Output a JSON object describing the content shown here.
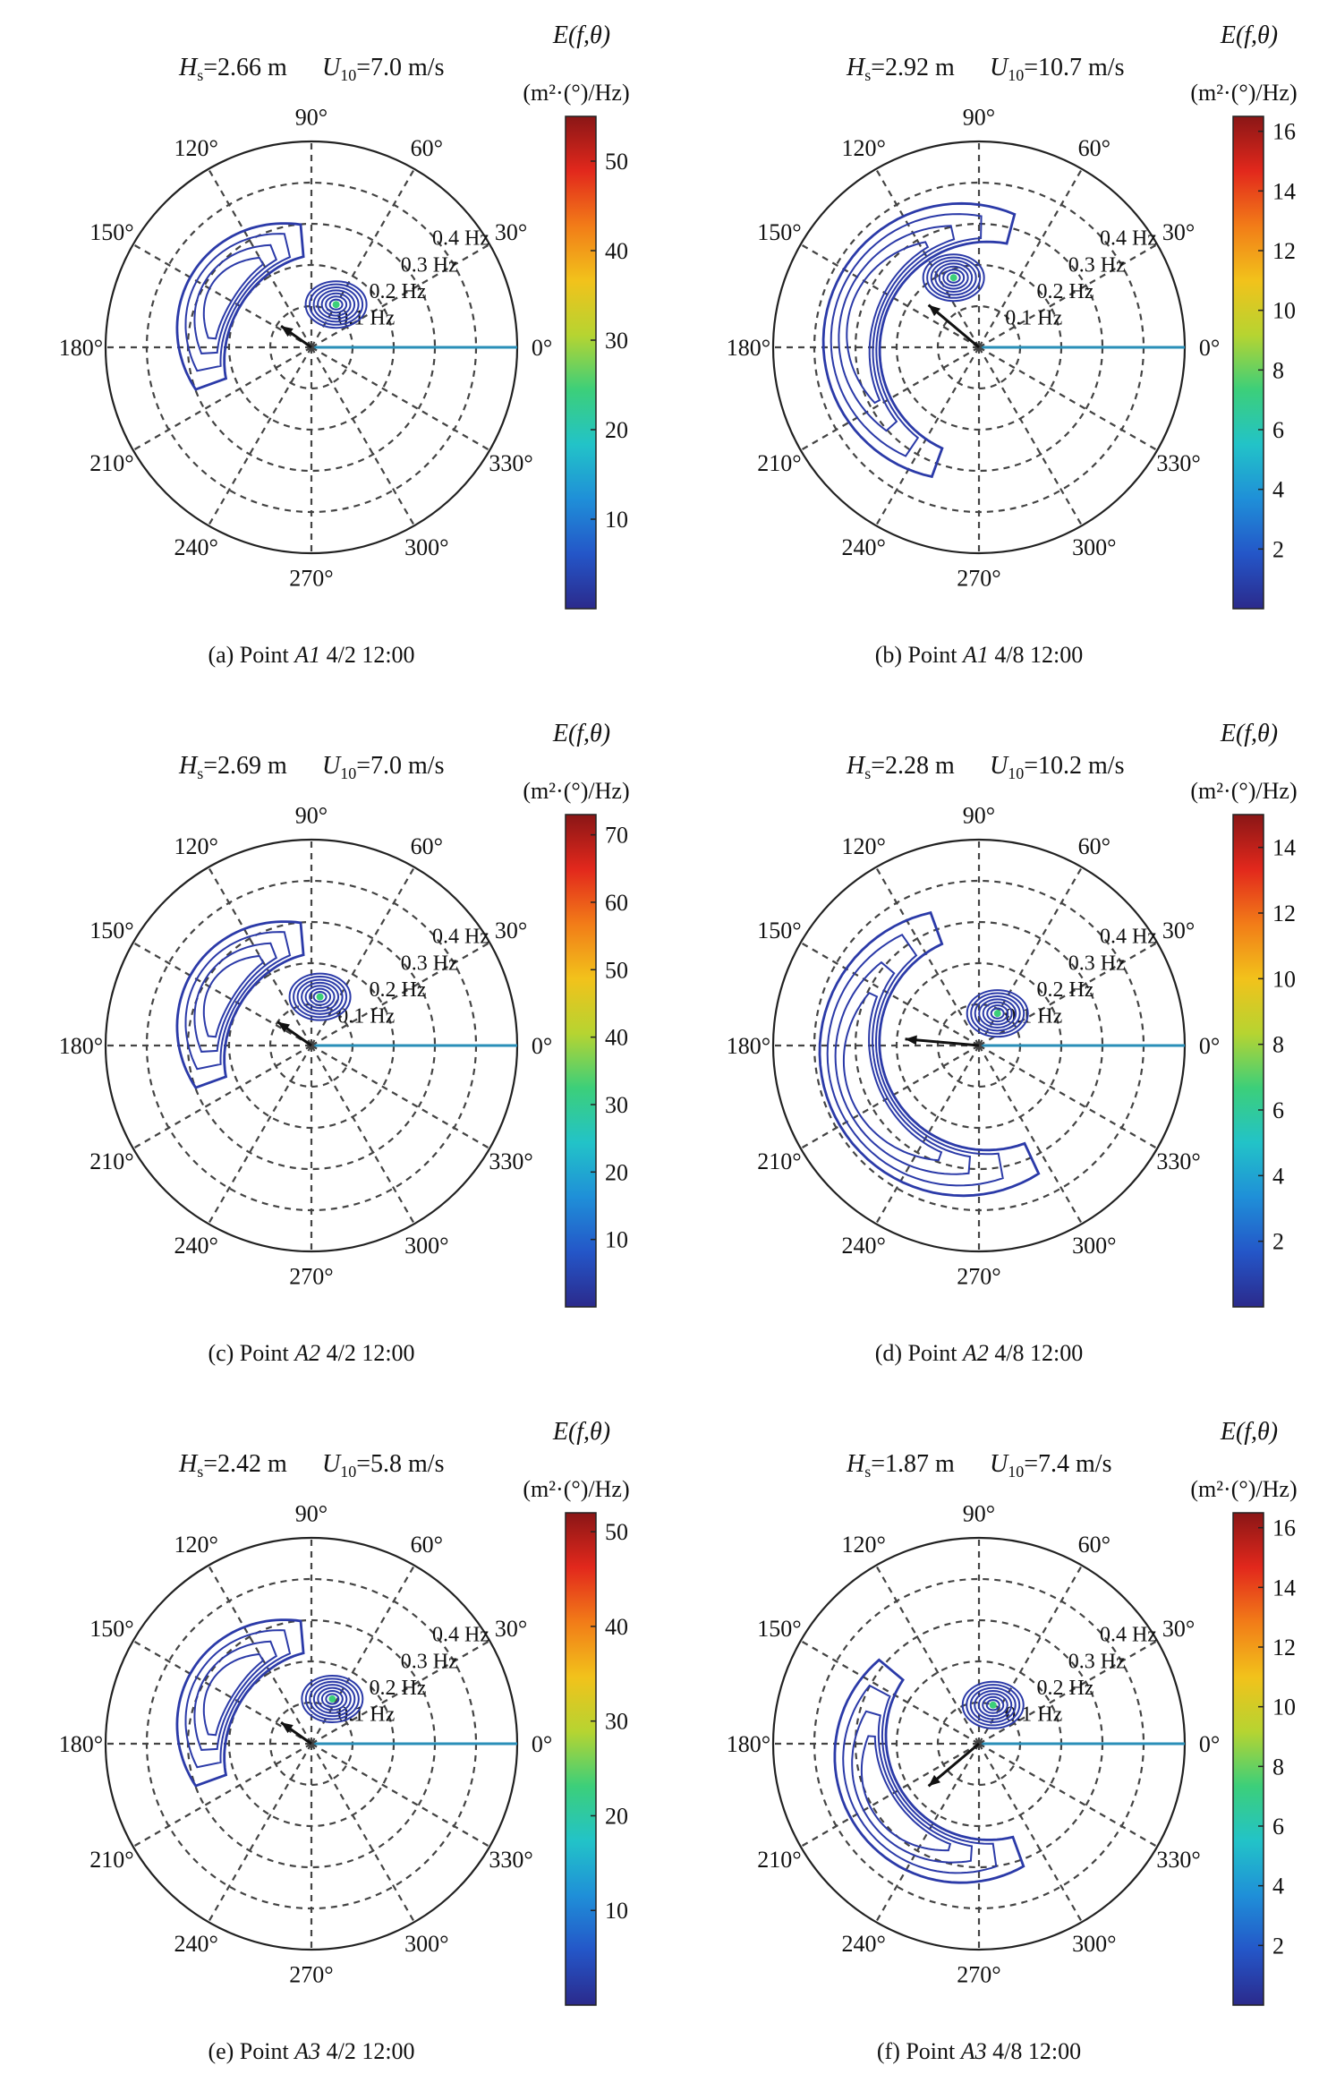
{
  "figure": {
    "colors": {
      "grid": "#444444",
      "contour": "#2b3aa8",
      "wind_arrow": "#111111",
      "zero_line": "#2a8fb8",
      "text": "#111111"
    },
    "colormap": [
      "#2b2a8c",
      "#2456c8",
      "#1f8fd8",
      "#22c3c8",
      "#3ccf7a",
      "#b6d431",
      "#f2c21b",
      "#f27c18",
      "#e2281c",
      "#8a1616"
    ],
    "colorbar_title": "E(f,θ)",
    "colorbar_unit": "(m²·(°)/Hz)",
    "angle_labels": [
      "0°",
      "30°",
      "60°",
      "90°",
      "120°",
      "150°",
      "180°",
      "210°",
      "240°",
      "270°",
      "300°",
      "330°"
    ],
    "freq_labels": [
      "0.1 Hz",
      "0.2 Hz",
      "0.3 Hz",
      "0.4 Hz"
    ],
    "hs_label": "H",
    "hs_sub": "s",
    "u_label": "U",
    "u_sub": "10"
  },
  "chart_data": [
    {
      "type": "polar-contour",
      "caption_prefix": "(a) Point ",
      "point": "A1",
      "caption_suffix": " 4/2 12:00",
      "hs_value": "=2.66 m",
      "u10_value": "=7.0 m/s",
      "colorbar_ticks": [
        "10",
        "20",
        "30",
        "40",
        "50"
      ],
      "colorbar_max": 55,
      "colorbar_min": 0,
      "wind_direction_deg": 145,
      "wind_freq": 0.09,
      "peak_direction_deg": 60,
      "peak_freq": 0.12,
      "swell": {
        "dir_start": 95,
        "dir_end": 200,
        "f_outer": 0.34,
        "f_inner": 0.2
      }
    },
    {
      "type": "polar-contour",
      "caption_prefix": "(b) Point ",
      "point": "A1",
      "caption_suffix": " 4/8 12:00",
      "hs_value": "=2.92 m",
      "u10_value": "=10.7 m/s",
      "colorbar_ticks": [
        "2",
        "4",
        "6",
        "8",
        "10",
        "12",
        "14",
        "16"
      ],
      "colorbar_max": 16.5,
      "colorbar_min": 0,
      "wind_direction_deg": 140,
      "wind_freq": 0.16,
      "peak_direction_deg": 110,
      "peak_freq": 0.18,
      "swell": {
        "dir_start": 75,
        "dir_end": 250,
        "f_outer": 0.38,
        "f_inner": 0.24
      }
    },
    {
      "type": "polar-contour",
      "caption_prefix": "(c) Point ",
      "point": "A2",
      "caption_suffix": " 4/2 12:00",
      "hs_value": "=2.69 m",
      "u10_value": "=7.0 m/s",
      "colorbar_ticks": [
        "10",
        "20",
        "30",
        "40",
        "50",
        "60",
        "70"
      ],
      "colorbar_max": 73,
      "colorbar_min": 0,
      "wind_direction_deg": 145,
      "wind_freq": 0.1,
      "peak_direction_deg": 80,
      "peak_freq": 0.12,
      "swell": {
        "dir_start": 95,
        "dir_end": 200,
        "f_outer": 0.34,
        "f_inner": 0.2
      }
    },
    {
      "type": "polar-contour",
      "caption_prefix": "(d) Point ",
      "point": "A2",
      "caption_suffix": " 4/8 12:00",
      "hs_value": "=2.28 m",
      "u10_value": "=10.2 m/s",
      "colorbar_ticks": [
        "2",
        "4",
        "6",
        "8",
        "10",
        "12",
        "14"
      ],
      "colorbar_max": 15,
      "colorbar_min": 0,
      "wind_direction_deg": 175,
      "wind_freq": 0.18,
      "peak_direction_deg": 60,
      "peak_freq": 0.09,
      "swell": {
        "dir_start": 110,
        "dir_end": 295,
        "f_outer": 0.39,
        "f_inner": 0.24
      }
    },
    {
      "type": "polar-contour",
      "caption_prefix": "(e) Point ",
      "point": "A3",
      "caption_suffix": " 4/2 12:00",
      "hs_value": "=2.42 m",
      "u10_value": "=5.8 m/s",
      "colorbar_ticks": [
        "10",
        "20",
        "30",
        "40",
        "50"
      ],
      "colorbar_max": 52,
      "colorbar_min": 0,
      "wind_direction_deg": 145,
      "wind_freq": 0.09,
      "peak_direction_deg": 65,
      "peak_freq": 0.12,
      "swell": {
        "dir_start": 95,
        "dir_end": 200,
        "f_outer": 0.34,
        "f_inner": 0.2
      }
    },
    {
      "type": "polar-contour",
      "caption_prefix": "(f) Point ",
      "point": "A3",
      "caption_suffix": " 4/8 12:00",
      "hs_value": "=1.87 m",
      "u10_value": "=7.4 m/s",
      "colorbar_ticks": [
        "2",
        "4",
        "6",
        "8",
        "10",
        "12",
        "14",
        "16"
      ],
      "colorbar_max": 16.5,
      "colorbar_min": 0,
      "wind_direction_deg": 220,
      "wind_freq": 0.16,
      "peak_direction_deg": 70,
      "peak_freq": 0.1,
      "swell": {
        "dir_start": 140,
        "dir_end": 290,
        "f_outer": 0.36,
        "f_inner": 0.22
      }
    }
  ]
}
